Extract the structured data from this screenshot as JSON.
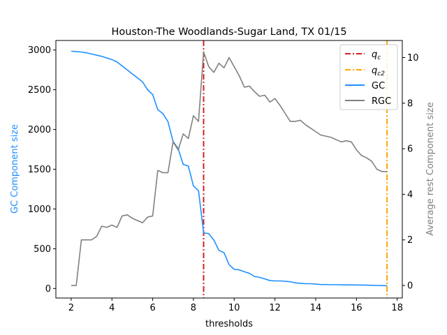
{
  "chart_data": {
    "type": "line",
    "title": "Houston-The Woodlands-Sugar Land, TX 01/15",
    "xlabel": "thresholds",
    "ylabel_left": "GC Component size",
    "ylabel_right": "Average rest Component size",
    "xlim": [
      1.25,
      18.25
    ],
    "ylim_left": [
      -120,
      3120
    ],
    "ylim_right": [
      -0.55,
      10.75
    ],
    "x_ticks": [
      2,
      4,
      6,
      8,
      10,
      12,
      14,
      16,
      18
    ],
    "y_ticks_left": [
      0,
      500,
      1000,
      1500,
      2000,
      2500,
      3000
    ],
    "y_ticks_right": [
      0,
      2,
      4,
      6,
      8,
      10
    ],
    "legend_position": "top-right",
    "grid": false,
    "colors": {
      "gc": "#1e90ff",
      "rgc": "#808080",
      "qc": "#d62020",
      "qc2": "#ffa500",
      "left_axis_label": "#1e90ff",
      "right_axis_label": "#808080"
    },
    "vlines": [
      {
        "name": "qc",
        "x": 8.5,
        "legend": "q_c"
      },
      {
        "name": "qc2",
        "x": 17.5,
        "legend": "q_c2"
      }
    ],
    "series": [
      {
        "name": "GC",
        "axis": "left",
        "x": [
          2.0,
          2.25,
          2.5,
          2.75,
          3.0,
          3.25,
          3.5,
          3.75,
          4.0,
          4.25,
          4.5,
          4.75,
          5.0,
          5.25,
          5.5,
          5.75,
          6.0,
          6.25,
          6.5,
          6.75,
          7.0,
          7.25,
          7.5,
          7.75,
          8.0,
          8.25,
          8.5,
          8.75,
          9.0,
          9.25,
          9.5,
          9.75,
          10.0,
          10.25,
          10.5,
          10.75,
          11.0,
          11.25,
          11.5,
          11.75,
          12.0,
          12.25,
          12.5,
          12.75,
          13.0,
          13.25,
          13.5,
          13.75,
          14.0,
          14.25,
          14.5,
          14.75,
          15.0,
          15.25,
          15.5,
          15.75,
          16.0,
          16.25,
          16.5,
          16.75,
          17.0,
          17.25,
          17.5
        ],
        "y": [
          2985,
          2980,
          2975,
          2965,
          2950,
          2935,
          2920,
          2900,
          2880,
          2850,
          2800,
          2750,
          2700,
          2650,
          2600,
          2500,
          2440,
          2250,
          2200,
          2100,
          1850,
          1760,
          1560,
          1540,
          1290,
          1230,
          700,
          690,
          610,
          480,
          450,
          300,
          240,
          235,
          210,
          190,
          150,
          140,
          120,
          100,
          95,
          95,
          90,
          85,
          70,
          65,
          60,
          60,
          55,
          50,
          50,
          48,
          48,
          46,
          45,
          45,
          44,
          43,
          42,
          40,
          38,
          36,
          35
        ]
      },
      {
        "name": "RGC",
        "axis": "right",
        "x": [
          2.0,
          2.25,
          2.5,
          2.75,
          3.0,
          3.25,
          3.5,
          3.75,
          4.0,
          4.25,
          4.5,
          4.75,
          5.0,
          5.25,
          5.5,
          5.75,
          6.0,
          6.25,
          6.5,
          6.75,
          7.0,
          7.25,
          7.5,
          7.75,
          8.0,
          8.25,
          8.5,
          8.75,
          9.0,
          9.25,
          9.5,
          9.75,
          10.0,
          10.25,
          10.5,
          10.75,
          11.0,
          11.25,
          11.5,
          11.75,
          12.0,
          12.25,
          12.5,
          12.75,
          13.0,
          13.25,
          13.5,
          13.75,
          14.0,
          14.25,
          14.5,
          14.75,
          15.0,
          15.25,
          15.5,
          15.75,
          16.0,
          16.25,
          16.5,
          16.75,
          17.0,
          17.25,
          17.5
        ],
        "y": [
          0.0,
          0.0,
          2.0,
          2.0,
          2.0,
          2.15,
          2.6,
          2.55,
          2.65,
          2.55,
          3.05,
          3.1,
          2.95,
          2.85,
          2.75,
          3.0,
          3.05,
          5.05,
          4.95,
          4.95,
          6.3,
          5.95,
          6.65,
          6.45,
          7.45,
          7.2,
          10.25,
          9.6,
          9.35,
          9.75,
          9.55,
          10.0,
          9.6,
          9.2,
          8.7,
          8.75,
          8.5,
          8.3,
          8.35,
          8.05,
          8.2,
          7.9,
          7.55,
          7.2,
          7.2,
          7.25,
          7.05,
          6.9,
          6.75,
          6.6,
          6.55,
          6.5,
          6.4,
          6.3,
          6.35,
          6.3,
          5.95,
          5.7,
          5.6,
          5.45,
          5.1,
          5.0,
          5.0
        ]
      }
    ]
  }
}
